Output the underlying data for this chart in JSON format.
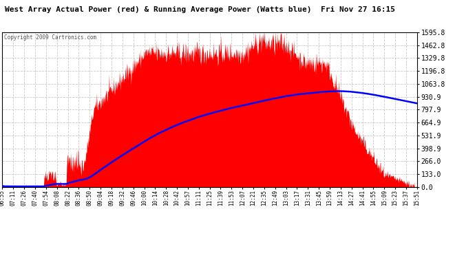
{
  "title": "West Array Actual Power (red) & Running Average Power (Watts blue)  Fri Nov 27 16:15",
  "copyright": "Copyright 2009 Cartronics.com",
  "bg_color": "#ffffff",
  "red_color": "#ff0000",
  "blue_color": "#0000ff",
  "grid_color": "#c8c8c8",
  "ymax": 1595.8,
  "ymin": 0.0,
  "ytick_values": [
    0.0,
    133.0,
    266.0,
    398.9,
    531.9,
    664.9,
    797.9,
    930.9,
    1063.8,
    1196.8,
    1329.8,
    1462.8,
    1595.8
  ],
  "ytick_labels": [
    "0.0",
    "133.0",
    "266.0",
    "398.9",
    "531.9",
    "664.9",
    "797.9",
    "930.9",
    "1063.8",
    "1196.8",
    "1329.8",
    "1462.8",
    "1595.8"
  ],
  "x_labels": [
    "06:55",
    "07:11",
    "07:26",
    "07:40",
    "07:54",
    "08:08",
    "08:22",
    "08:36",
    "08:50",
    "09:04",
    "09:18",
    "09:32",
    "09:46",
    "10:00",
    "10:14",
    "10:28",
    "10:42",
    "10:57",
    "11:11",
    "11:25",
    "11:39",
    "11:53",
    "12:07",
    "12:21",
    "12:35",
    "12:49",
    "13:03",
    "13:17",
    "13:31",
    "13:45",
    "13:59",
    "14:13",
    "14:27",
    "14:41",
    "14:55",
    "15:09",
    "15:23",
    "15:37",
    "15:51"
  ],
  "n_labels": 39
}
